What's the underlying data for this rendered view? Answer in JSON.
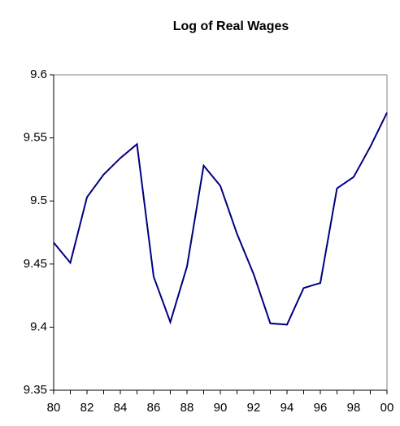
{
  "chart_data": {
    "type": "line",
    "title": "Log of Real Wages",
    "categories": [
      "80",
      null,
      "82",
      null,
      "84",
      null,
      "86",
      null,
      "88",
      null,
      "90",
      null,
      "92",
      null,
      "94",
      null,
      "96",
      null,
      "98",
      null,
      "00"
    ],
    "series": [
      {
        "name": "Log of Real Wages",
        "color": "#000080",
        "values": [
          9.467,
          9.451,
          9.503,
          9.521,
          9.534,
          9.545,
          9.44,
          9.404,
          9.448,
          9.528,
          9.512,
          9.474,
          9.442,
          9.403,
          9.402,
          9.431,
          9.435,
          9.51,
          9.519,
          9.543,
          9.57
        ]
      }
    ],
    "ylim": [
      9.35,
      9.6
    ],
    "yticks": [
      9.35,
      9.4,
      9.45,
      9.5,
      9.55,
      9.6
    ],
    "grid": false
  }
}
